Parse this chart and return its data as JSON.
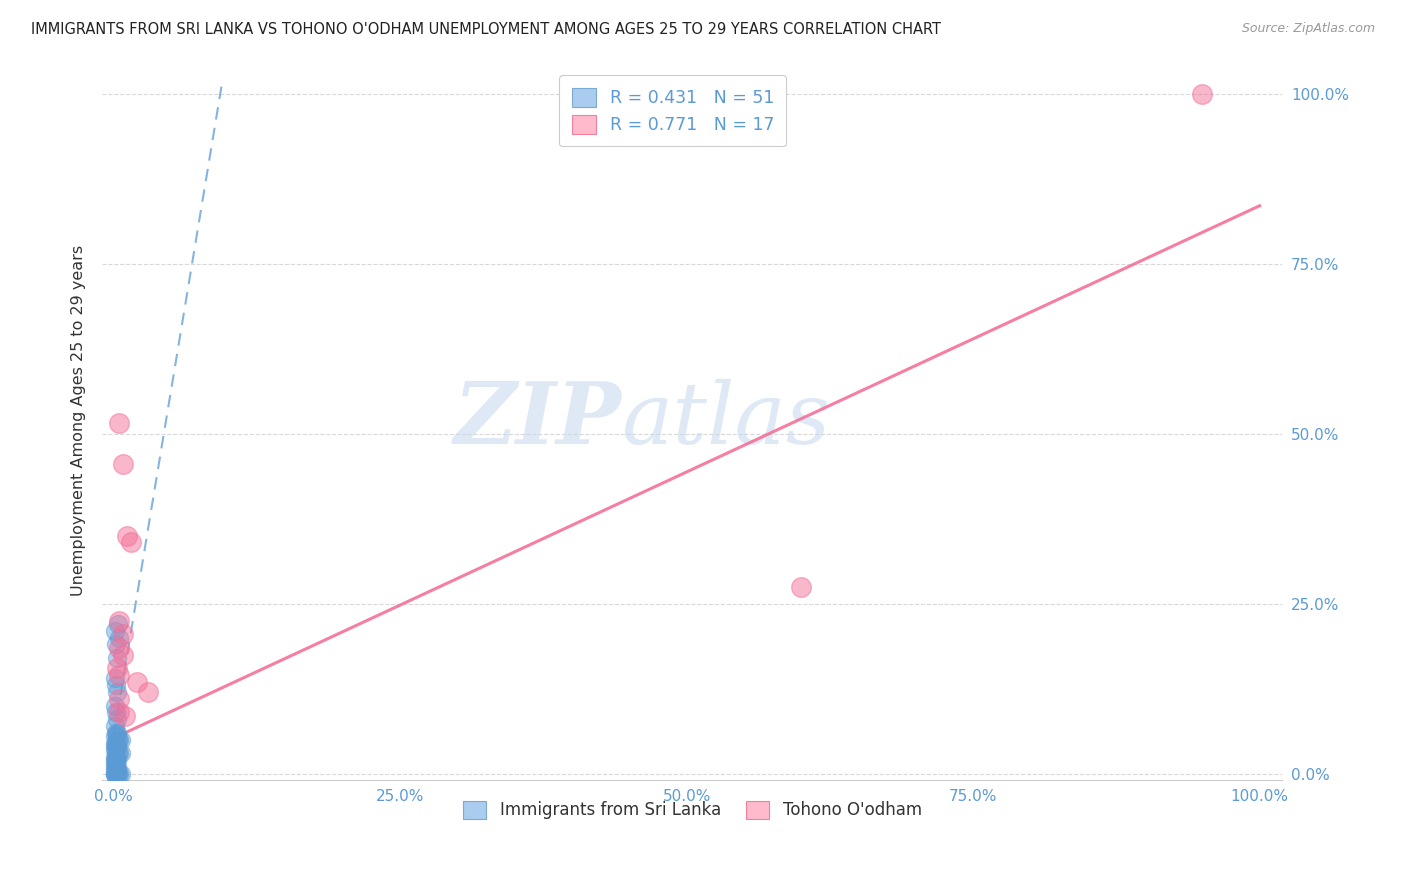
{
  "title": "IMMIGRANTS FROM SRI LANKA VS TOHONO O'ODHAM UNEMPLOYMENT AMONG AGES 25 TO 29 YEARS CORRELATION CHART",
  "source": "Source: ZipAtlas.com",
  "xlabel_blue": "Immigrants from Sri Lanka",
  "xlabel_pink": "Tohono O'odham",
  "ylabel": "Unemployment Among Ages 25 to 29 years",
  "xlim": [
    -0.01,
    1.02
  ],
  "ylim": [
    -0.01,
    1.05
  ],
  "xticks": [
    0.0,
    0.25,
    0.5,
    0.75,
    1.0
  ],
  "xtick_labels": [
    "0.0%",
    "25.0%",
    "50.0%",
    "75.0%",
    "100.0%"
  ],
  "ytick_labels_right": [
    "100.0%",
    "75.0%",
    "50.0%",
    "25.0%",
    "0.0%"
  ],
  "yticks": [
    1.0,
    0.75,
    0.5,
    0.25,
    0.0
  ],
  "legend_R_blue": "0.431",
  "legend_N_blue": "51",
  "legend_R_pink": "0.771",
  "legend_N_pink": "17",
  "blue_color": "#5B9BD5",
  "pink_color": "#F47098",
  "blue_scatter": [
    [
      0.001,
      0.21
    ],
    [
      0.002,
      0.19
    ],
    [
      0.003,
      0.17
    ],
    [
      0.004,
      0.22
    ],
    [
      0.005,
      0.2
    ],
    [
      0.001,
      0.14
    ],
    [
      0.002,
      0.13
    ],
    [
      0.003,
      0.12
    ],
    [
      0.001,
      0.1
    ],
    [
      0.002,
      0.09
    ],
    [
      0.003,
      0.08
    ],
    [
      0.001,
      0.07
    ],
    [
      0.002,
      0.06
    ],
    [
      0.003,
      0.06
    ],
    [
      0.004,
      0.05
    ],
    [
      0.005,
      0.05
    ],
    [
      0.006,
      0.05
    ],
    [
      0.001,
      0.04
    ],
    [
      0.002,
      0.04
    ],
    [
      0.003,
      0.04
    ],
    [
      0.004,
      0.03
    ],
    [
      0.005,
      0.03
    ],
    [
      0.006,
      0.03
    ],
    [
      0.001,
      0.02
    ],
    [
      0.002,
      0.02
    ],
    [
      0.003,
      0.02
    ],
    [
      0.001,
      0.015
    ],
    [
      0.002,
      0.015
    ],
    [
      0.001,
      0.01
    ],
    [
      0.002,
      0.01
    ],
    [
      0.003,
      0.01
    ],
    [
      0.001,
      0.005
    ],
    [
      0.002,
      0.005
    ],
    [
      0.003,
      0.005
    ],
    [
      0.001,
      0.0
    ],
    [
      0.002,
      0.0
    ],
    [
      0.003,
      0.0
    ],
    [
      0.004,
      0.0
    ],
    [
      0.005,
      0.0
    ],
    [
      0.006,
      0.0
    ],
    [
      0.001,
      0.0
    ],
    [
      0.002,
      0.0
    ],
    [
      0.001,
      0.0
    ],
    [
      0.001,
      0.025
    ],
    [
      0.002,
      0.025
    ],
    [
      0.001,
      0.035
    ],
    [
      0.002,
      0.035
    ],
    [
      0.001,
      0.045
    ],
    [
      0.002,
      0.045
    ],
    [
      0.001,
      0.055
    ],
    [
      0.003,
      0.055
    ]
  ],
  "pink_scatter": [
    [
      0.005,
      0.515
    ],
    [
      0.008,
      0.455
    ],
    [
      0.005,
      0.225
    ],
    [
      0.008,
      0.205
    ],
    [
      0.012,
      0.35
    ],
    [
      0.015,
      0.34
    ],
    [
      0.005,
      0.185
    ],
    [
      0.008,
      0.175
    ],
    [
      0.003,
      0.155
    ],
    [
      0.005,
      0.145
    ],
    [
      0.005,
      0.11
    ],
    [
      0.02,
      0.135
    ],
    [
      0.03,
      0.12
    ],
    [
      0.005,
      0.09
    ],
    [
      0.01,
      0.085
    ],
    [
      0.6,
      0.275
    ],
    [
      0.95,
      1.0
    ]
  ],
  "blue_trendline_x": [
    0.0,
    0.095
  ],
  "blue_trendline_y": [
    0.055,
    1.02
  ],
  "pink_trendline_x": [
    0.0,
    1.0
  ],
  "pink_trendline_y": [
    0.052,
    0.835
  ],
  "watermark_line1": "ZIP",
  "watermark_line2": "atlas",
  "background_color": "#ffffff",
  "grid_color": "#d8d8d8"
}
